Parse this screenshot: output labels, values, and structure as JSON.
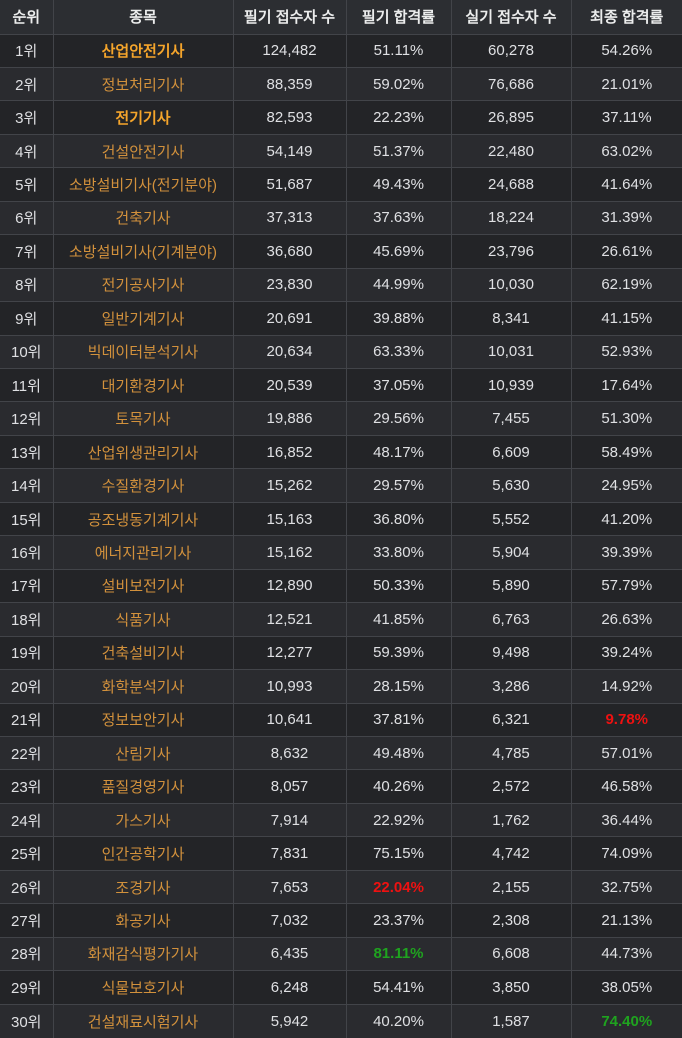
{
  "chart_data": {
    "type": "table",
    "columns": [
      "순위",
      "종목",
      "필기 접수자 수",
      "필기 합격률",
      "실기 접수자 수",
      "최종 합격률"
    ],
    "rows": [
      {
        "rank": "1위",
        "subject": "산업안전기사",
        "subject_bold": true,
        "written_applicants": "124,482",
        "written_pass_rate": "51.11%",
        "written_rate_color": "normal",
        "practical_applicants": "60,278",
        "final_pass_rate": "54.26%",
        "final_rate_color": "normal"
      },
      {
        "rank": "2위",
        "subject": "정보처리기사",
        "subject_bold": false,
        "written_applicants": "88,359",
        "written_pass_rate": "59.02%",
        "written_rate_color": "normal",
        "practical_applicants": "76,686",
        "final_pass_rate": "21.01%",
        "final_rate_color": "normal"
      },
      {
        "rank": "3위",
        "subject": "전기기사",
        "subject_bold": true,
        "written_applicants": "82,593",
        "written_pass_rate": "22.23%",
        "written_rate_color": "normal",
        "practical_applicants": "26,895",
        "final_pass_rate": "37.11%",
        "final_rate_color": "normal"
      },
      {
        "rank": "4위",
        "subject": "건설안전기사",
        "subject_bold": false,
        "written_applicants": "54,149",
        "written_pass_rate": "51.37%",
        "written_rate_color": "normal",
        "practical_applicants": "22,480",
        "final_pass_rate": "63.02%",
        "final_rate_color": "normal"
      },
      {
        "rank": "5위",
        "subject": "소방설비기사(전기분야)",
        "subject_bold": false,
        "written_applicants": "51,687",
        "written_pass_rate": "49.43%",
        "written_rate_color": "normal",
        "practical_applicants": "24,688",
        "final_pass_rate": "41.64%",
        "final_rate_color": "normal"
      },
      {
        "rank": "6위",
        "subject": "건축기사",
        "subject_bold": false,
        "written_applicants": "37,313",
        "written_pass_rate": "37.63%",
        "written_rate_color": "normal",
        "practical_applicants": "18,224",
        "final_pass_rate": "31.39%",
        "final_rate_color": "normal"
      },
      {
        "rank": "7위",
        "subject": "소방설비기사(기계분야)",
        "subject_bold": false,
        "written_applicants": "36,680",
        "written_pass_rate": "45.69%",
        "written_rate_color": "normal",
        "practical_applicants": "23,796",
        "final_pass_rate": "26.61%",
        "final_rate_color": "normal"
      },
      {
        "rank": "8위",
        "subject": "전기공사기사",
        "subject_bold": false,
        "written_applicants": "23,830",
        "written_pass_rate": "44.99%",
        "written_rate_color": "normal",
        "practical_applicants": "10,030",
        "final_pass_rate": "62.19%",
        "final_rate_color": "normal"
      },
      {
        "rank": "9위",
        "subject": "일반기계기사",
        "subject_bold": false,
        "written_applicants": "20,691",
        "written_pass_rate": "39.88%",
        "written_rate_color": "normal",
        "practical_applicants": "8,341",
        "final_pass_rate": "41.15%",
        "final_rate_color": "normal"
      },
      {
        "rank": "10위",
        "subject": "빅데이터분석기사",
        "subject_bold": false,
        "written_applicants": "20,634",
        "written_pass_rate": "63.33%",
        "written_rate_color": "normal",
        "practical_applicants": "10,031",
        "final_pass_rate": "52.93%",
        "final_rate_color": "normal"
      },
      {
        "rank": "11위",
        "subject": "대기환경기사",
        "subject_bold": false,
        "written_applicants": "20,539",
        "written_pass_rate": "37.05%",
        "written_rate_color": "normal",
        "practical_applicants": "10,939",
        "final_pass_rate": "17.64%",
        "final_rate_color": "normal"
      },
      {
        "rank": "12위",
        "subject": "토목기사",
        "subject_bold": false,
        "written_applicants": "19,886",
        "written_pass_rate": "29.56%",
        "written_rate_color": "normal",
        "practical_applicants": "7,455",
        "final_pass_rate": "51.30%",
        "final_rate_color": "normal"
      },
      {
        "rank": "13위",
        "subject": "산업위생관리기사",
        "subject_bold": false,
        "written_applicants": "16,852",
        "written_pass_rate": "48.17%",
        "written_rate_color": "normal",
        "practical_applicants": "6,609",
        "final_pass_rate": "58.49%",
        "final_rate_color": "normal"
      },
      {
        "rank": "14위",
        "subject": "수질환경기사",
        "subject_bold": false,
        "written_applicants": "15,262",
        "written_pass_rate": "29.57%",
        "written_rate_color": "normal",
        "practical_applicants": "5,630",
        "final_pass_rate": "24.95%",
        "final_rate_color": "normal"
      },
      {
        "rank": "15위",
        "subject": "공조냉동기계기사",
        "subject_bold": false,
        "written_applicants": "15,163",
        "written_pass_rate": "36.80%",
        "written_rate_color": "normal",
        "practical_applicants": "5,552",
        "final_pass_rate": "41.20%",
        "final_rate_color": "normal"
      },
      {
        "rank": "16위",
        "subject": "에너지관리기사",
        "subject_bold": false,
        "written_applicants": "15,162",
        "written_pass_rate": "33.80%",
        "written_rate_color": "normal",
        "practical_applicants": "5,904",
        "final_pass_rate": "39.39%",
        "final_rate_color": "normal"
      },
      {
        "rank": "17위",
        "subject": "설비보전기사",
        "subject_bold": false,
        "written_applicants": "12,890",
        "written_pass_rate": "50.33%",
        "written_rate_color": "normal",
        "practical_applicants": "5,890",
        "final_pass_rate": "57.79%",
        "final_rate_color": "normal"
      },
      {
        "rank": "18위",
        "subject": "식품기사",
        "subject_bold": false,
        "written_applicants": "12,521",
        "written_pass_rate": "41.85%",
        "written_rate_color": "normal",
        "practical_applicants": "6,763",
        "final_pass_rate": "26.63%",
        "final_rate_color": "normal"
      },
      {
        "rank": "19위",
        "subject": "건축설비기사",
        "subject_bold": false,
        "written_applicants": "12,277",
        "written_pass_rate": "59.39%",
        "written_rate_color": "normal",
        "practical_applicants": "9,498",
        "final_pass_rate": "39.24%",
        "final_rate_color": "normal"
      },
      {
        "rank": "20위",
        "subject": "화학분석기사",
        "subject_bold": false,
        "written_applicants": "10,993",
        "written_pass_rate": "28.15%",
        "written_rate_color": "normal",
        "practical_applicants": "3,286",
        "final_pass_rate": "14.92%",
        "final_rate_color": "normal"
      },
      {
        "rank": "21위",
        "subject": "정보보안기사",
        "subject_bold": false,
        "written_applicants": "10,641",
        "written_pass_rate": "37.81%",
        "written_rate_color": "normal",
        "practical_applicants": "6,321",
        "final_pass_rate": "9.78%",
        "final_rate_color": "red"
      },
      {
        "rank": "22위",
        "subject": "산림기사",
        "subject_bold": false,
        "written_applicants": "8,632",
        "written_pass_rate": "49.48%",
        "written_rate_color": "normal",
        "practical_applicants": "4,785",
        "final_pass_rate": "57.01%",
        "final_rate_color": "normal"
      },
      {
        "rank": "23위",
        "subject": "품질경영기사",
        "subject_bold": false,
        "written_applicants": "8,057",
        "written_pass_rate": "40.26%",
        "written_rate_color": "normal",
        "practical_applicants": "2,572",
        "final_pass_rate": "46.58%",
        "final_rate_color": "normal"
      },
      {
        "rank": "24위",
        "subject": "가스기사",
        "subject_bold": false,
        "written_applicants": "7,914",
        "written_pass_rate": "22.92%",
        "written_rate_color": "normal",
        "practical_applicants": "1,762",
        "final_pass_rate": "36.44%",
        "final_rate_color": "normal"
      },
      {
        "rank": "25위",
        "subject": "인간공학기사",
        "subject_bold": false,
        "written_applicants": "7,831",
        "written_pass_rate": "75.15%",
        "written_rate_color": "normal",
        "practical_applicants": "4,742",
        "final_pass_rate": "74.09%",
        "final_rate_color": "normal"
      },
      {
        "rank": "26위",
        "subject": "조경기사",
        "subject_bold": false,
        "written_applicants": "7,653",
        "written_pass_rate": "22.04%",
        "written_rate_color": "red",
        "practical_applicants": "2,155",
        "final_pass_rate": "32.75%",
        "final_rate_color": "normal"
      },
      {
        "rank": "27위",
        "subject": "화공기사",
        "subject_bold": false,
        "written_applicants": "7,032",
        "written_pass_rate": "23.37%",
        "written_rate_color": "normal",
        "practical_applicants": "2,308",
        "final_pass_rate": "21.13%",
        "final_rate_color": "normal"
      },
      {
        "rank": "28위",
        "subject": "화재감식평가기사",
        "subject_bold": false,
        "written_applicants": "6,435",
        "written_pass_rate": "81.11%",
        "written_rate_color": "green",
        "practical_applicants": "6,608",
        "final_pass_rate": "44.73%",
        "final_rate_color": "normal"
      },
      {
        "rank": "29위",
        "subject": "식물보호기사",
        "subject_bold": false,
        "written_applicants": "6,248",
        "written_pass_rate": "54.41%",
        "written_rate_color": "normal",
        "practical_applicants": "3,850",
        "final_pass_rate": "38.05%",
        "final_rate_color": "normal"
      },
      {
        "rank": "30위",
        "subject": "건설재료시험기사",
        "subject_bold": false,
        "written_applicants": "5,942",
        "written_pass_rate": "40.20%",
        "written_rate_color": "normal",
        "practical_applicants": "1,587",
        "final_pass_rate": "74.40%",
        "final_rate_color": "green"
      }
    ]
  },
  "colors": {
    "page_bg": "#222327",
    "header_bg": "#2c2e32",
    "row_odd_bg": "#232427",
    "row_even_bg": "#2a2b2f",
    "border": "#424449",
    "text": "#dfe0e3",
    "subject_orange": "#d2913c",
    "subject_orange_bold": "#f5a52b",
    "highlight_red": "#ee1111",
    "highlight_green": "#1fa31f"
  }
}
